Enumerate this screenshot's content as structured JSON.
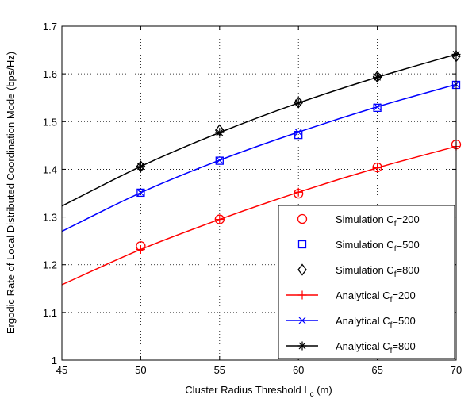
{
  "chart_data": {
    "type": "line",
    "title": "",
    "xlabel": "Cluster Radius Threshold L",
    "xlabel_sub": "c",
    "xlabel_unit": " (m)",
    "ylabel": "Ergodic Rate of Local Distributed Coordination Mode (bps/Hz)",
    "xlim": [
      45,
      70
    ],
    "ylim": [
      1,
      1.7
    ],
    "xticks": [
      "45",
      "50",
      "55",
      "60",
      "65",
      "70"
    ],
    "yticks": [
      "1",
      "1.1",
      "1.2",
      "1.3",
      "1.4",
      "1.5",
      "1.6",
      "1.7"
    ],
    "grid": true,
    "legend_position": "bottom-right",
    "simulation_x": [
      50,
      55,
      60,
      65,
      70
    ],
    "analytical_x": [
      45,
      50,
      55,
      60,
      65,
      70
    ],
    "series": [
      {
        "name": "Simulation C_f=200",
        "legend": {
          "prefix": "Simulation C",
          "sub": "f",
          "suffix": "=200"
        },
        "kind": "simulation",
        "marker": "circle",
        "color": "#ff0000",
        "values": [
          1.239,
          1.295,
          1.349,
          1.404,
          1.452
        ]
      },
      {
        "name": "Simulation C_f=500",
        "legend": {
          "prefix": "Simulation C",
          "sub": "f",
          "suffix": "=500"
        },
        "kind": "simulation",
        "marker": "square",
        "color": "#0000ff",
        "values": [
          1.351,
          1.418,
          1.472,
          1.529,
          1.577
        ]
      },
      {
        "name": "Simulation C_f=800",
        "legend": {
          "prefix": "Simulation C",
          "sub": "f",
          "suffix": "=800"
        },
        "kind": "simulation",
        "marker": "diamond",
        "color": "#000000",
        "values": [
          1.406,
          1.482,
          1.54,
          1.594,
          1.637
        ]
      },
      {
        "name": "Analytical C_f=200",
        "legend": {
          "prefix": "Analytical C",
          "sub": "f",
          "suffix": "=200"
        },
        "kind": "analytical",
        "marker": "plus",
        "color": "#ff0000",
        "values": [
          1.158,
          1.232,
          1.295,
          1.352,
          1.403,
          1.448
        ]
      },
      {
        "name": "Analytical C_f=500",
        "legend": {
          "prefix": "Analytical C",
          "sub": "f",
          "suffix": "=500"
        },
        "kind": "analytical",
        "marker": "x",
        "color": "#0000ff",
        "values": [
          1.27,
          1.351,
          1.419,
          1.478,
          1.531,
          1.578
        ]
      },
      {
        "name": "Analytical C_f=800",
        "legend": {
          "prefix": "Analytical C",
          "sub": "f",
          "suffix": "=800"
        },
        "kind": "analytical",
        "marker": "star",
        "color": "#000000",
        "values": [
          1.323,
          1.406,
          1.477,
          1.539,
          1.593,
          1.641
        ]
      }
    ]
  }
}
